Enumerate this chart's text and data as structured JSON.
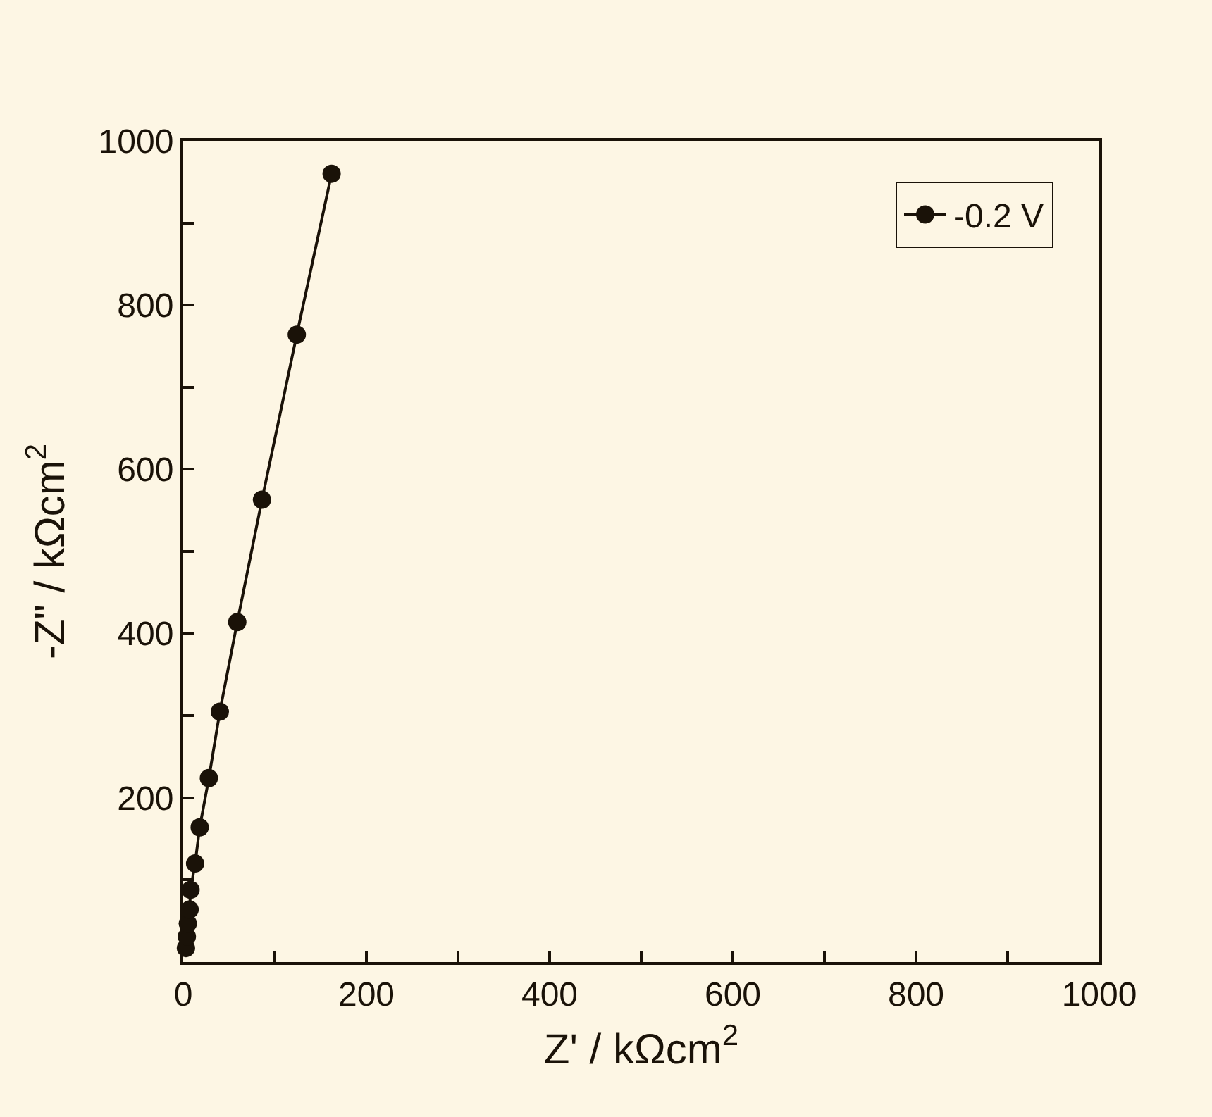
{
  "chart_data": {
    "type": "line",
    "xlabel": "Z' / kΩcm$^{2}$",
    "ylabel": "-Z\" / kΩcm$^{2}$",
    "x": [
      3,
      4,
      5,
      7,
      8,
      13,
      18,
      28,
      40,
      59,
      86,
      124,
      162
    ],
    "series": [
      {
        "name": "-0.2 V",
        "color": "#1a1208",
        "values": [
          17,
          31,
          47,
          64,
          88,
          120,
          164,
          224,
          305,
          414,
          563,
          764,
          960
        ]
      }
    ],
    "marker": "circle",
    "line_style": "solid",
    "legend": "top right",
    "grid": false,
    "xlim": [
      0,
      1000
    ],
    "ylim": [
      0,
      1000
    ],
    "xticks": [
      0,
      {
        "value": 100,
        "label": null
      },
      200,
      {
        "value": 300,
        "label": null
      },
      400,
      {
        "value": 500,
        "label": null
      },
      600,
      {
        "value": 700,
        "label": null
      },
      800,
      {
        "value": 900,
        "label": null
      },
      1000
    ],
    "yticks": [
      {
        "value": 100,
        "label": null
      },
      200,
      {
        "value": 300,
        "label": null
      },
      400,
      {
        "value": 500,
        "label": null
      },
      600,
      {
        "value": 700,
        "label": null
      },
      800,
      {
        "value": 900,
        "label": null
      },
      1000
    ]
  }
}
